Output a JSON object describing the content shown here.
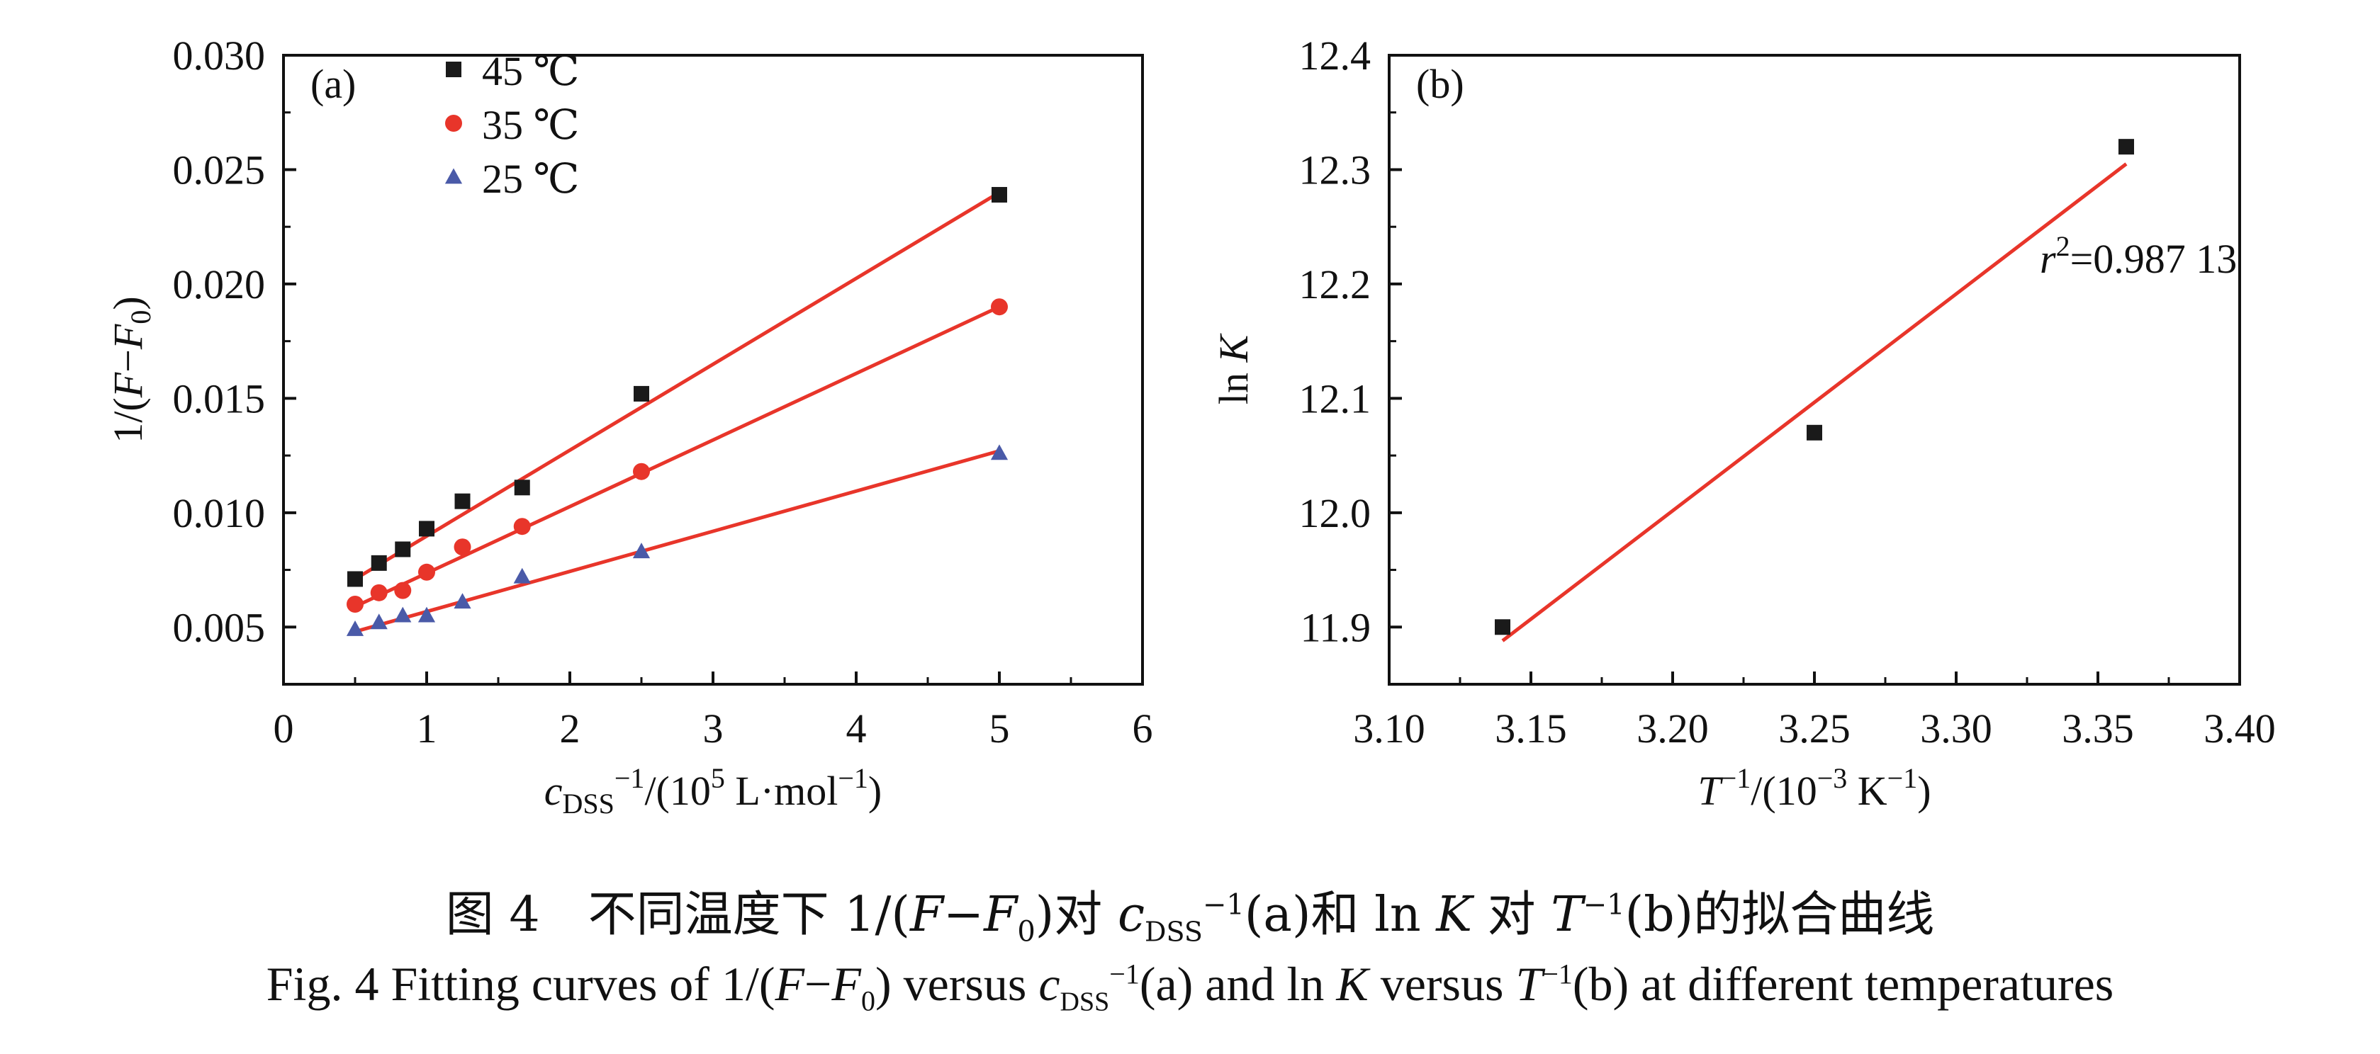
{
  "chart_data": [
    {
      "type": "scatter",
      "panel_label": "(a)",
      "xlabel": "c_DSS^-1/(10^5 L·mol^-1)",
      "xlabel_parts": {
        "var": "c",
        "sub": "DSS",
        "sup1": "−1",
        "mid": "/(10",
        "sup2": "5",
        "unit": " L·mol",
        "sup3": "−1",
        "end": ")"
      },
      "ylabel": "1/(F−F0)",
      "ylabel_parts": {
        "pre": "1/(",
        "F": "F",
        "dash": "−",
        "F0": "F",
        "sub": "0",
        "end": ")"
      },
      "xlim": [
        0,
        6
      ],
      "ylim": [
        0.0025,
        0.03
      ],
      "xticks": [
        "0",
        "1",
        "2",
        "3",
        "4",
        "5",
        "6"
      ],
      "yticks": [
        "0.005",
        "0.010",
        "0.015",
        "0.020",
        "0.025",
        "0.030"
      ],
      "legend_position": "top-left",
      "series": [
        {
          "name": "45 ℃",
          "marker": "square",
          "color": "#1a1a1a",
          "x": [
            0.5,
            0.667,
            0.833,
            1.0,
            1.25,
            1.667,
            2.5,
            5.0
          ],
          "y": [
            0.0071,
            0.0078,
            0.0084,
            0.0093,
            0.0105,
            0.0111,
            0.0152,
            0.0239
          ],
          "fit": [
            [
              0.5,
              0.0071
            ],
            [
              5.0,
              0.024
            ]
          ]
        },
        {
          "name": "35 ℃",
          "marker": "circle",
          "color": "#e8352a",
          "x": [
            0.5,
            0.667,
            0.833,
            1.0,
            1.25,
            1.667,
            2.5,
            5.0
          ],
          "y": [
            0.006,
            0.0065,
            0.0066,
            0.0074,
            0.0085,
            0.0094,
            0.0118,
            0.019
          ],
          "fit": [
            [
              0.5,
              0.0059
            ],
            [
              5.0,
              0.019
            ]
          ]
        },
        {
          "name": "25 ℃",
          "marker": "triangle",
          "color": "#4a5aa8",
          "x": [
            0.5,
            0.667,
            0.833,
            1.0,
            1.25,
            1.667,
            2.5,
            5.0
          ],
          "y": [
            0.0049,
            0.0052,
            0.0055,
            0.0055,
            0.0061,
            0.0072,
            0.0083,
            0.0126
          ],
          "fit": [
            [
              0.5,
              0.0048
            ],
            [
              5.0,
              0.0127
            ]
          ]
        }
      ],
      "fit_color": "#e8352a"
    },
    {
      "type": "scatter",
      "panel_label": "(b)",
      "xlabel": "T^-1/(10^-3 K^-1)",
      "xlabel_parts": {
        "var": "T",
        "sup1": "−1",
        "mid": "/(10",
        "sup2": "−3",
        "unit": " K",
        "sup3": "−1",
        "end": ")"
      },
      "ylabel": "ln K",
      "ylabel_parts": {
        "pre": "ln ",
        "var": "K"
      },
      "xlim": [
        3.1,
        3.4
      ],
      "ylim": [
        11.85,
        12.4
      ],
      "xticks": [
        "3.10",
        "3.15",
        "3.20",
        "3.25",
        "3.30",
        "3.35",
        "3.40"
      ],
      "yticks": [
        "11.9",
        "12.0",
        "12.1",
        "12.2",
        "12.3",
        "12.4"
      ],
      "annotation": {
        "var": "r",
        "sup": "2",
        "text": "=0.987 13"
      },
      "series": [
        {
          "marker": "square",
          "color": "#1a1a1a",
          "x": [
            3.14,
            3.25,
            3.36
          ],
          "y": [
            11.9,
            12.07,
            12.32
          ],
          "fit": [
            [
              3.14,
              11.888
            ],
            [
              3.36,
              12.305
            ]
          ]
        }
      ],
      "fit_color": "#e8352a"
    }
  ],
  "caption": {
    "zh": "图 4　不同温度下 1/(F−F₀)对 c_DSS⁻¹(a)和 ln K 对 T⁻¹(b)的拟合曲线",
    "zh_parts": {
      "p1": "图 4　不同温度下 1/(",
      "F": "F",
      "dash": "−",
      "F0": "F",
      "sub0": "0",
      "p2": ")对 ",
      "c": "c",
      "subDSS": "DSS",
      "sup1": "−1",
      "p3": "(a)和 ln ",
      "K": "K",
      "p4": " 对 ",
      "T": "T",
      "sup2": "−1",
      "p5": "(b)的拟合曲线"
    },
    "en": "Fig. 4  Fitting curves of 1/(F−F0) versus c_DSS^-1(a) and ln K versus T^-1(b) at different temperatures",
    "en_parts": {
      "p1": "Fig. 4  Fitting curves of 1/(",
      "F": "F",
      "dash": "−",
      "F0": "F",
      "sub0": "0",
      "p2": ") versus ",
      "c": "c",
      "subDSS": "DSS",
      "sup1": "−1",
      "p3": "(a) and ln ",
      "K": "K",
      "p4": " versus ",
      "T": "T",
      "sup2": "−1",
      "p5": "(b) at different temperatures"
    }
  }
}
